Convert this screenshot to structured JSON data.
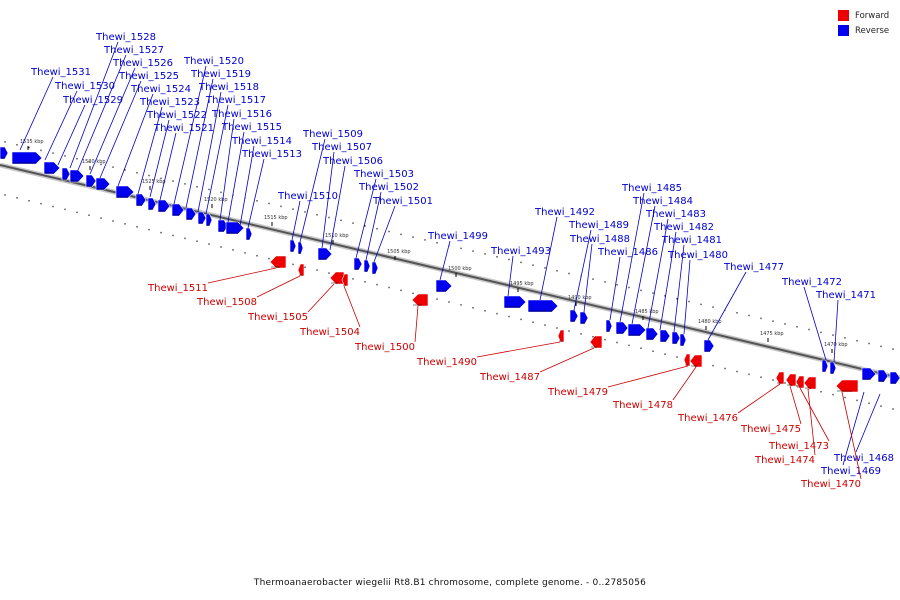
{
  "legend": {
    "forward_label": "Forward",
    "reverse_label": "Reverse",
    "forward_color": "#ee0000",
    "reverse_color": "#0000ee"
  },
  "caption": "Thermoanaerobacter wiegelii Rt8.B1 chromosome, complete genome. - 0..2785056",
  "ticks": [
    "1535 kbp",
    "1530 kbp",
    "1525 kbp",
    "1520 kbp",
    "1515 kbp",
    "1510 kbp",
    "1505 kbp",
    "1500 kbp",
    "1495 kbp",
    "1490 kbp",
    "1485 kbp",
    "1480 kbp",
    "1475 kbp",
    "1470 kbp"
  ],
  "reverse_genes": [
    "Thewi_1531",
    "Thewi_1530",
    "Thewi_1529",
    "Thewi_1528",
    "Thewi_1527",
    "Thewi_1526",
    "Thewi_1525",
    "Thewi_1524",
    "Thewi_1523",
    "Thewi_1522",
    "Thewi_1521",
    "Thewi_1520",
    "Thewi_1519",
    "Thewi_1518",
    "Thewi_1517",
    "Thewi_1516",
    "Thewi_1515",
    "Thewi_1514",
    "Thewi_1513",
    "Thewi_1510",
    "Thewi_1509",
    "Thewi_1507",
    "Thewi_1506",
    "Thewi_1503",
    "Thewi_1502",
    "Thewi_1501",
    "Thewi_1499",
    "Thewi_1493",
    "Thewi_1492",
    "Thewi_1489",
    "Thewi_1488",
    "Thewi_1486",
    "Thewi_1485",
    "Thewi_1484",
    "Thewi_1483",
    "Thewi_1482",
    "Thewi_1481",
    "Thewi_1480",
    "Thewi_1477",
    "Thewi_1472",
    "Thewi_1471",
    "Thewi_1469",
    "Thewi_1468"
  ],
  "forward_genes": [
    "Thewi_1511",
    "Thewi_1508",
    "Thewi_1505",
    "Thewi_1504",
    "Thewi_1500",
    "Thewi_1490",
    "Thewi_1487",
    "Thewi_1479",
    "Thewi_1478",
    "Thewi_1476",
    "Thewi_1475",
    "Thewi_1473",
    "Thewi_1474",
    "Thewi_1470"
  ]
}
